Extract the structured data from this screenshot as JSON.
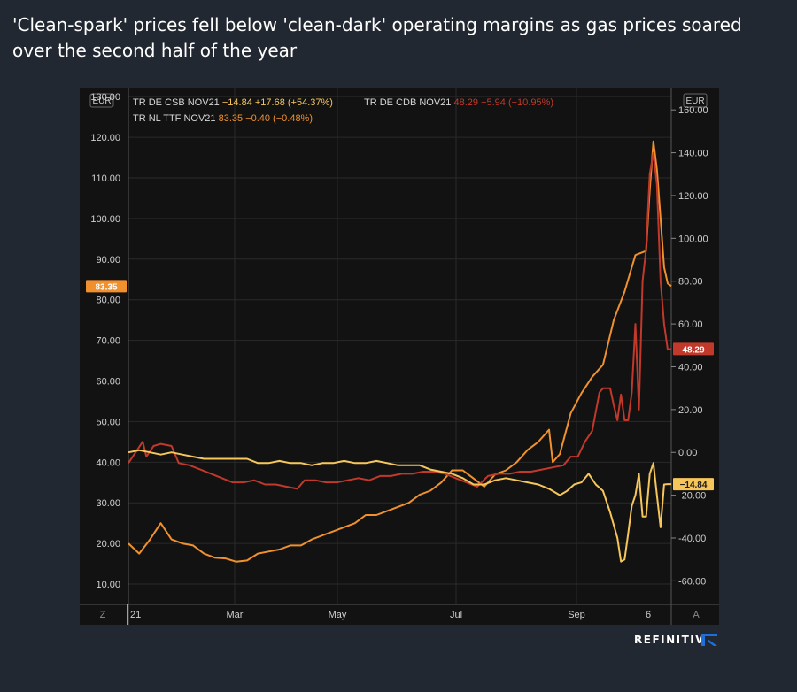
{
  "headline": "'Clean-spark' prices fell below 'clean-dark' operating margins as gas prices soared over the second half of the year",
  "brand": "REFINITIV",
  "colors": {
    "csb": "#F7C65B",
    "cdb": "#C0392B",
    "ttf": "#F0912E",
    "background": "#121212",
    "page": "#222831",
    "grid": "#2A2A2A"
  },
  "chart_data": {
    "type": "line",
    "title": "",
    "left_axis": {
      "unit": "EUR",
      "ylim": [
        5,
        132
      ],
      "ticks": [
        "130.00",
        "120.00",
        "110.00",
        "100.00",
        "90.00",
        "80.00",
        "70.00",
        "60.00",
        "50.00",
        "40.00",
        "30.00",
        "20.00",
        "10.00"
      ]
    },
    "right_axis": {
      "unit": "EUR",
      "ylim": [
        -71,
        170
      ],
      "ticks": [
        "160.00",
        "140.00",
        "120.00",
        "100.00",
        "80.00",
        "60.00",
        "40.00",
        "20.00",
        "0.00",
        "-20.00",
        "-40.00",
        "-60.00"
      ]
    },
    "x_axis": {
      "ticks": [
        "21",
        "Mar",
        "May",
        "Jul",
        "Sep",
        "6"
      ],
      "corner_left": "Z",
      "corner_right": "A"
    },
    "grid": true,
    "legend": [
      {
        "name": "TR DE CSB NOV21",
        "last": "−14.84",
        "change": "+17.68 (+54.37%)",
        "color": "#F7C65B"
      },
      {
        "name": "TR DE CDB NOV21",
        "last": "48.29",
        "change": "−5.94 (−10.95%)",
        "color": "#C0392B"
      },
      {
        "name": "TR NL TTF NOV21",
        "last": "83.35",
        "change": "−0.40 (−0.48%)",
        "color": "#F0912E"
      }
    ],
    "price_tags": [
      {
        "series": "TTF",
        "axis": "left",
        "text": "83.35",
        "value": 83.35,
        "color": "#F0912E"
      },
      {
        "series": "CDB",
        "axis": "right",
        "text": "48.29",
        "value": 48.29,
        "color": "#C0392B"
      },
      {
        "series": "CSB",
        "axis": "right",
        "text": "−14.84",
        "value": -14.84,
        "color": "#F7C65B"
      }
    ],
    "series": [
      {
        "name": "TR NL TTF NOV21",
        "axis": "left",
        "color": "#F0912E",
        "points": [
          [
            0,
            20
          ],
          [
            6,
            17.5
          ],
          [
            12,
            21
          ],
          [
            18,
            25
          ],
          [
            24,
            21
          ],
          [
            30,
            20
          ],
          [
            36,
            19.5
          ],
          [
            42,
            17.5
          ],
          [
            48,
            16.5
          ],
          [
            54,
            16.3
          ],
          [
            60,
            15.5
          ],
          [
            66,
            15.8
          ],
          [
            72,
            17.5
          ],
          [
            78,
            18
          ],
          [
            84,
            18.5
          ],
          [
            90,
            19.5
          ],
          [
            96,
            19.5
          ],
          [
            102,
            21
          ],
          [
            108,
            22
          ],
          [
            114,
            23
          ],
          [
            120,
            24
          ],
          [
            126,
            25
          ],
          [
            132,
            27
          ],
          [
            138,
            27
          ],
          [
            144,
            28
          ],
          [
            150,
            29
          ],
          [
            156,
            30
          ],
          [
            162,
            32
          ],
          [
            168,
            33
          ],
          [
            174,
            35
          ],
          [
            180,
            38
          ],
          [
            186,
            38
          ],
          [
            192,
            36
          ],
          [
            198,
            34
          ],
          [
            204,
            37
          ],
          [
            210,
            38
          ],
          [
            216,
            40
          ],
          [
            222,
            43
          ],
          [
            228,
            45
          ],
          [
            234,
            48
          ],
          [
            236,
            40
          ],
          [
            240,
            42
          ],
          [
            246,
            52
          ],
          [
            252,
            57
          ],
          [
            258,
            61
          ],
          [
            264,
            64
          ],
          [
            270,
            75
          ],
          [
            276,
            82
          ],
          [
            282,
            91
          ],
          [
            288,
            92
          ],
          [
            290,
            107
          ],
          [
            292,
            119
          ],
          [
            294,
            112
          ],
          [
            296,
            100
          ],
          [
            298,
            88
          ],
          [
            300,
            84
          ],
          [
            302,
            83.35
          ]
        ]
      },
      {
        "name": "TR DE CDB NOV21",
        "axis": "right",
        "color": "#C0392B",
        "points": [
          [
            0,
            -5
          ],
          [
            4,
            0
          ],
          [
            8,
            5
          ],
          [
            10,
            -2
          ],
          [
            14,
            3
          ],
          [
            18,
            4
          ],
          [
            24,
            3
          ],
          [
            28,
            -5
          ],
          [
            34,
            -6
          ],
          [
            40,
            -8
          ],
          [
            46,
            -10
          ],
          [
            52,
            -12
          ],
          [
            58,
            -14
          ],
          [
            64,
            -14
          ],
          [
            70,
            -13
          ],
          [
            76,
            -15
          ],
          [
            82,
            -15
          ],
          [
            88,
            -16
          ],
          [
            94,
            -17
          ],
          [
            98,
            -13
          ],
          [
            104,
            -13
          ],
          [
            110,
            -14
          ],
          [
            116,
            -14
          ],
          [
            122,
            -13
          ],
          [
            128,
            -12
          ],
          [
            134,
            -13
          ],
          [
            140,
            -11
          ],
          [
            146,
            -11
          ],
          [
            152,
            -10
          ],
          [
            158,
            -10
          ],
          [
            164,
            -9
          ],
          [
            170,
            -9
          ],
          [
            176,
            -10
          ],
          [
            182,
            -12
          ],
          [
            188,
            -14
          ],
          [
            194,
            -16
          ],
          [
            200,
            -11
          ],
          [
            206,
            -10
          ],
          [
            212,
            -10
          ],
          [
            218,
            -9
          ],
          [
            224,
            -9
          ],
          [
            230,
            -8
          ],
          [
            236,
            -7
          ],
          [
            242,
            -6
          ],
          [
            246,
            -2
          ],
          [
            250,
            -2
          ],
          [
            254,
            5
          ],
          [
            258,
            10
          ],
          [
            262,
            28
          ],
          [
            264,
            30
          ],
          [
            268,
            30
          ],
          [
            270,
            22
          ],
          [
            272,
            15
          ],
          [
            274,
            27
          ],
          [
            276,
            15
          ],
          [
            278,
            15
          ],
          [
            280,
            28
          ],
          [
            282,
            60
          ],
          [
            284,
            20
          ],
          [
            286,
            80
          ],
          [
            288,
            95
          ],
          [
            290,
            130
          ],
          [
            292,
            140
          ],
          [
            294,
            125
          ],
          [
            296,
            80
          ],
          [
            298,
            60
          ],
          [
            300,
            48
          ],
          [
            302,
            48.29
          ]
        ]
      },
      {
        "name": "TR DE CSB NOV21",
        "axis": "right",
        "color": "#F7C65B",
        "points": [
          [
            0,
            0
          ],
          [
            6,
            1
          ],
          [
            12,
            0
          ],
          [
            18,
            -1
          ],
          [
            24,
            0
          ],
          [
            30,
            -1
          ],
          [
            36,
            -2
          ],
          [
            42,
            -3
          ],
          [
            48,
            -3
          ],
          [
            54,
            -3
          ],
          [
            60,
            -3
          ],
          [
            66,
            -3
          ],
          [
            72,
            -5
          ],
          [
            78,
            -5
          ],
          [
            84,
            -4
          ],
          [
            90,
            -5
          ],
          [
            96,
            -5
          ],
          [
            102,
            -6
          ],
          [
            108,
            -5
          ],
          [
            114,
            -5
          ],
          [
            120,
            -4
          ],
          [
            126,
            -5
          ],
          [
            132,
            -5
          ],
          [
            138,
            -4
          ],
          [
            144,
            -5
          ],
          [
            150,
            -6
          ],
          [
            156,
            -6
          ],
          [
            162,
            -6
          ],
          [
            168,
            -8
          ],
          [
            174,
            -9
          ],
          [
            180,
            -10
          ],
          [
            186,
            -12
          ],
          [
            192,
            -15
          ],
          [
            198,
            -15
          ],
          [
            204,
            -13
          ],
          [
            210,
            -12
          ],
          [
            216,
            -13
          ],
          [
            222,
            -14
          ],
          [
            228,
            -15
          ],
          [
            234,
            -17
          ],
          [
            240,
            -20
          ],
          [
            244,
            -18
          ],
          [
            248,
            -15
          ],
          [
            252,
            -14
          ],
          [
            256,
            -10
          ],
          [
            260,
            -15
          ],
          [
            264,
            -18
          ],
          [
            268,
            -28
          ],
          [
            272,
            -40
          ],
          [
            274,
            -51
          ],
          [
            276,
            -50
          ],
          [
            278,
            -38
          ],
          [
            280,
            -25
          ],
          [
            282,
            -20
          ],
          [
            284,
            -10
          ],
          [
            286,
            -30
          ],
          [
            288,
            -30
          ],
          [
            290,
            -10
          ],
          [
            292,
            -5
          ],
          [
            294,
            -20
          ],
          [
            296,
            -35
          ],
          [
            298,
            -15
          ],
          [
            300,
            -14.84
          ],
          [
            302,
            -14.84
          ]
        ]
      }
    ]
  }
}
